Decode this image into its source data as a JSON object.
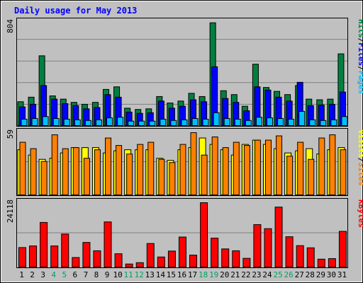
{
  "chart_data": {
    "type": "bar",
    "title": "Daily usage for May 2013",
    "categories": [
      "1",
      "2",
      "3",
      "4",
      "5",
      "6",
      "7",
      "8",
      "9",
      "10",
      "11",
      "12",
      "13",
      "14",
      "15",
      "16",
      "17",
      "18",
      "19",
      "20",
      "21",
      "22",
      "23",
      "24",
      "25",
      "26",
      "27",
      "28",
      "29",
      "30",
      "31"
    ],
    "weekend_days": [
      "4",
      "5",
      "11",
      "12",
      "18",
      "19",
      "25",
      "26"
    ],
    "panels": [
      {
        "id": "pages-files-hits",
        "max_label": "804",
        "ylim": [
          0,
          804
        ],
        "legend": [
          "Pages",
          "/",
          "Files",
          "/",
          "Hits"
        ],
        "series": [
          {
            "name": "Hits",
            "color": "#008040",
            "values": [
              190,
              225,
              545,
              235,
              210,
              185,
              170,
              185,
              285,
              305,
              140,
              130,
              135,
              230,
              180,
              195,
              255,
              230,
              800,
              275,
              245,
              155,
              480,
              300,
              270,
              245,
              315,
              210,
              205,
              210,
              560
            ]
          },
          {
            "name": "Files",
            "color": "#0000ff",
            "values": [
              150,
              170,
              315,
              210,
              175,
              160,
              135,
              145,
              245,
              225,
              110,
              100,
              105,
              195,
              140,
              155,
              205,
              190,
              460,
              215,
              185,
              120,
              305,
              280,
              225,
              195,
              340,
              160,
              165,
              170,
              265
            ]
          },
          {
            "name": "Pages",
            "color": "#00bfff",
            "values": [
              55,
              60,
              75,
              60,
              55,
              50,
              45,
              50,
              65,
              70,
              40,
              40,
              40,
              55,
              45,
              50,
              60,
              55,
              105,
              60,
              55,
              45,
              70,
              65,
              60,
              55,
              115,
              50,
              45,
              50,
              75
            ]
          }
        ]
      },
      {
        "id": "visits-sites",
        "max_label": "59",
        "ylim": [
          0,
          59
        ],
        "legend": [
          "Sites",
          "/",
          "Visits"
        ],
        "series": [
          {
            "name": "Visits",
            "color": "#ffff00",
            "values": [
              43,
              38,
              34,
              35,
              40,
              45,
              45,
              45,
              40,
              42,
              43,
              43,
              43,
              35,
              33,
              43,
              45,
              54,
              48,
              43,
              38,
              48,
              52,
              48,
              44,
              40,
              42,
              44,
              39,
              43,
              45
            ]
          },
          {
            "name": "Sites",
            "color": "#ff8000",
            "values": [
              50,
              44,
              32,
              57,
              44,
              45,
              35,
              43,
              54,
              47,
              39,
              48,
              50,
              34,
              31,
              48,
              59,
              38,
              55,
              45,
              50,
              47,
              52,
              52,
              56,
              37,
              50,
              34,
              54,
              57,
              43
            ]
          }
        ]
      },
      {
        "id": "kbytes",
        "max_label": "24118",
        "ylim": [
          0,
          24118
        ],
        "legend": [
          "KBytes"
        ],
        "series": [
          {
            "name": "KBytes",
            "color": "#ff0000",
            "values": [
              7500,
              8100,
              16800,
              8100,
              12500,
              3800,
              9400,
              6300,
              17000,
              5200,
              1400,
              1900,
              9000,
              4000,
              6200,
              11400,
              4700,
              24118,
              11000,
              7000,
              6300,
              3500,
              16000,
              14500,
              22500,
              11500,
              8200,
              7400,
              3200,
              3400,
              13500
            ]
          }
        ]
      }
    ]
  },
  "colors": {
    "title": "#0000ff",
    "panel_bg": "#c0c0c0",
    "panel_border": "#000000",
    "gridline": "#808080",
    "weekend_label": "#00a060",
    "weekday_label": "#000000",
    "legend_separator": "#000000"
  }
}
